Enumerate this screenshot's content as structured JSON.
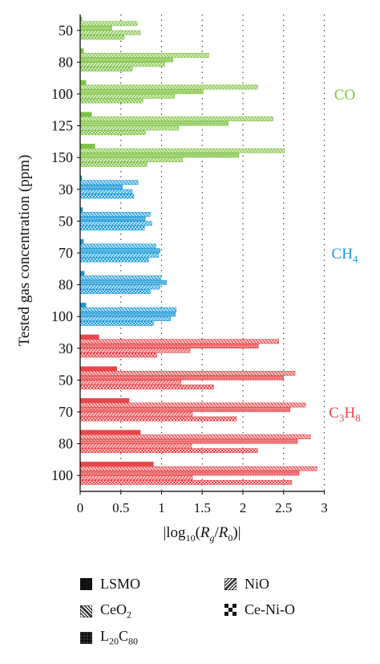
{
  "chart_data": {
    "type": "bar",
    "orientation": "horizontal",
    "grouped": true,
    "ylabel": "Tested gas concentration (ppm)",
    "xlabel": "|log10(Rg/R0)|",
    "xlabel_parts": {
      "a": "|log",
      "b": "10",
      "c": "(",
      "d": "R",
      "e": "g",
      "f": "/",
      "g": "R",
      "h": "0",
      "i": ")|"
    },
    "xlim": [
      0,
      3
    ],
    "xticks": [
      "0",
      "0.5",
      "1",
      "1.5",
      "2",
      "2.5",
      "3"
    ],
    "gridlines": "dotted vertical",
    "legend_position": "bottom",
    "series_names": [
      "LSMO",
      "CeO2",
      "L20C80",
      "NiO",
      "Ce-Ni-O"
    ],
    "groups": [
      {
        "gas": "CO",
        "gas_parts": {
          "main": "CO",
          "sub1": "",
          "mid": "",
          "sub2": ""
        },
        "color": "#7dc242",
        "categories": [
          "50",
          "80",
          "100",
          "125",
          "150"
        ],
        "series": [
          {
            "values": [
              0.02,
              0.04,
              0.07,
              0.14,
              0.18
            ]
          },
          {
            "values": [
              0.7,
              1.58,
              2.18,
              2.37,
              2.51
            ]
          },
          {
            "values": [
              0.39,
              1.14,
              1.51,
              1.82,
              1.95
            ]
          },
          {
            "values": [
              0.74,
              1.04,
              1.16,
              1.21,
              1.26
            ]
          },
          {
            "values": [
              0.54,
              0.64,
              0.77,
              0.8,
              0.82
            ]
          }
        ]
      },
      {
        "gas": "CH4",
        "gas_parts": {
          "main": "CH",
          "sub1": "4",
          "mid": "",
          "sub2": ""
        },
        "color": "#1a9ad6",
        "categories": [
          "30",
          "50",
          "70",
          "80",
          "100"
        ],
        "series": [
          {
            "values": [
              0.02,
              0.03,
              0.04,
              0.05,
              0.07
            ]
          },
          {
            "values": [
              0.71,
              0.86,
              0.93,
              0.99,
              1.18
            ]
          },
          {
            "values": [
              0.52,
              0.8,
              0.98,
              1.06,
              1.17
            ]
          },
          {
            "values": [
              0.64,
              0.88,
              0.96,
              0.98,
              1.11
            ]
          },
          {
            "values": [
              0.66,
              0.79,
              0.84,
              0.86,
              0.9
            ]
          }
        ]
      },
      {
        "gas": "C3H8",
        "gas_parts": {
          "main": "C",
          "sub1": "3",
          "mid": "H",
          "sub2": "8"
        },
        "color": "#e8474a",
        "categories": [
          "30",
          "50",
          "70",
          "80",
          "100"
        ],
        "series": [
          {
            "values": [
              0.23,
              0.45,
              0.6,
              0.74,
              0.9
            ]
          },
          {
            "values": [
              2.44,
              2.64,
              2.77,
              2.83,
              2.91
            ]
          },
          {
            "values": [
              2.19,
              2.5,
              2.58,
              2.67,
              2.69
            ]
          },
          {
            "values": [
              1.35,
              1.24,
              1.38,
              1.37,
              1.38
            ]
          },
          {
            "values": [
              0.94,
              1.64,
              1.92,
              2.18,
              2.6
            ]
          }
        ]
      }
    ]
  },
  "legend": [
    {
      "id": "lsmo",
      "pattern": "solid",
      "label_parts": {
        "a": "LSMO",
        "b": "",
        "c": "",
        "d": ""
      }
    },
    {
      "id": "ceo2",
      "pattern": "backhatch",
      "label_parts": {
        "a": "CeO",
        "b": "2",
        "c": "",
        "d": ""
      }
    },
    {
      "id": "l20c80",
      "pattern": "dense",
      "label_parts": {
        "a": "L",
        "b": "20",
        "c": "C",
        "d": "80"
      }
    },
    {
      "id": "nio",
      "pattern": "hatch",
      "label_parts": {
        "a": "NiO",
        "b": "",
        "c": "",
        "d": ""
      }
    },
    {
      "id": "ceni",
      "pattern": "checker",
      "label_parts": {
        "a": "Ce-Ni-O",
        "b": "",
        "c": "",
        "d": ""
      }
    }
  ]
}
